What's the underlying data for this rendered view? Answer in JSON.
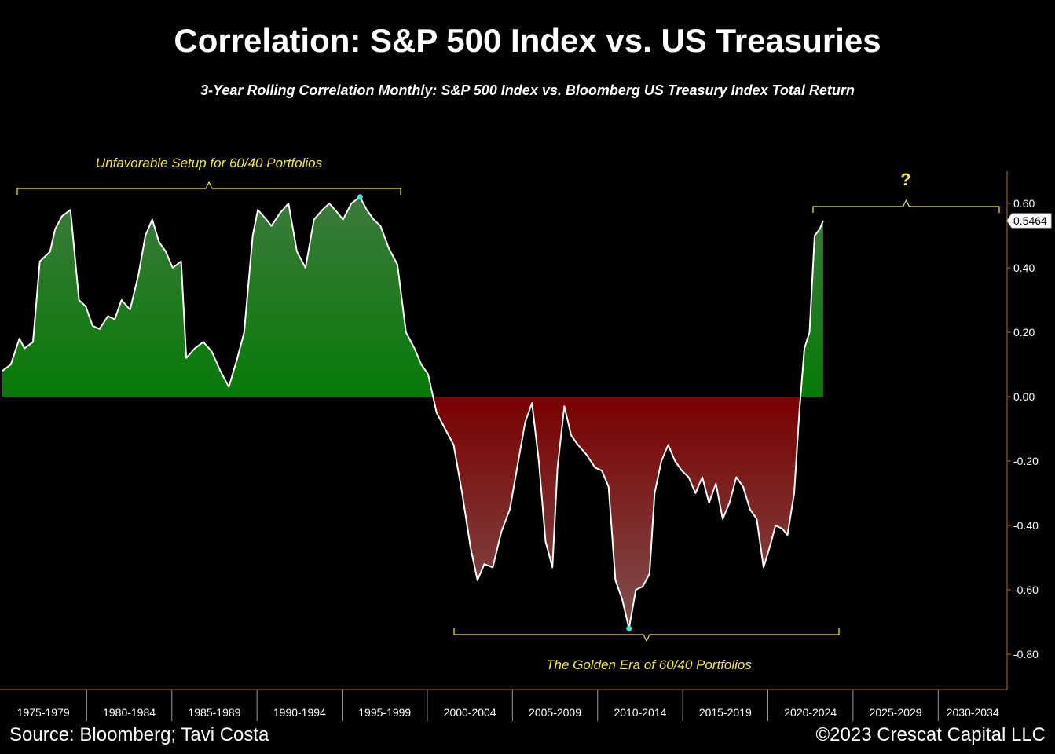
{
  "title": "Correlation: S&P 500 Index vs. US Treasuries",
  "subtitle": "3-Year Rolling Correlation Monthly: S&P 500 Index vs. Bloomberg US Treasury Index Total Return",
  "footer": {
    "source": "Source: Bloomberg; Tavi Costa",
    "copyright": "©2023 Crescat Capital LLC"
  },
  "annotations": {
    "unfavorable": "Unfavorable Setup for 60/40 Portfolios",
    "golden": "The Golden Era of 60/40 Portfolios",
    "question": "?"
  },
  "last_value_label": "0.5464",
  "colors": {
    "positive": "#0a7a0a",
    "negative": "#8b0000",
    "line": "#ffffff",
    "annotation": "#f2e84a",
    "axis": "#c06a1a",
    "marker": "#4fe0e0"
  },
  "chart_data": {
    "type": "area",
    "title": "Correlation: S&P 500 Index vs. US Treasuries",
    "subtitle": "3-Year Rolling Correlation Monthly: S&P 500 Index vs. Bloomberg US Treasury Index Total Return",
    "xlabel": "",
    "ylabel": "",
    "x_categories": [
      "1975-1979",
      "1980-1984",
      "1985-1989",
      "1990-1994",
      "1995-1999",
      "2000-2004",
      "2005-2009",
      "2010-2014",
      "2015-2019",
      "2020-2024",
      "2025-2029",
      "2030-2034"
    ],
    "xlim": [
      1975,
      2034
    ],
    "ylim": [
      -0.9,
      0.7
    ],
    "y_ticks": [
      -0.8,
      -0.6,
      -0.4,
      -0.2,
      0.0,
      0.2,
      0.4,
      0.6
    ],
    "y_axis_side": "right",
    "grid": false,
    "last_value": 0.5464,
    "series": [
      {
        "x": [
          1975.0,
          1975.5,
          1976.0,
          1976.3,
          1976.8,
          1977.2,
          1977.8,
          1978.1,
          1978.5,
          1979.0,
          1979.5,
          1979.9,
          1980.3,
          1980.7,
          1981.2,
          1981.6,
          1982.0,
          1982.5,
          1983.0,
          1983.4,
          1983.8,
          1984.2,
          1984.6,
          1985.0,
          1985.5,
          1985.8,
          1986.3,
          1986.8,
          1987.3,
          1987.8,
          1988.3,
          1988.8,
          1989.2,
          1989.7,
          1990.0,
          1990.5,
          1990.8,
          1991.3,
          1991.8,
          1992.3,
          1992.8,
          1993.3,
          1993.8,
          1994.2,
          1994.7,
          1995.0,
          1995.5,
          1996.0,
          1996.4,
          1996.8,
          1997.2,
          1997.7,
          1998.2,
          1998.7,
          1999.2,
          1999.6,
          2000.0,
          2000.5,
          2001.0,
          2001.5,
          2002.0,
          2002.5,
          2002.9,
          2003.3,
          2003.8,
          2004.3,
          2004.8,
          2005.3,
          2005.7,
          2006.1,
          2006.5,
          2006.9,
          2007.3,
          2007.6,
          2008.0,
          2008.4,
          2008.8,
          2009.3,
          2009.8,
          2010.2,
          2010.6,
          2011.0,
          2011.4,
          2011.8,
          2012.2,
          2012.6,
          2013.0,
          2013.3,
          2013.7,
          2014.1,
          2014.5,
          2014.9,
          2015.3,
          2015.7,
          2016.1,
          2016.5,
          2016.9,
          2017.3,
          2017.7,
          2018.1,
          2018.5,
          2018.9,
          2019.3,
          2019.7,
          2020.1,
          2020.4,
          2020.8,
          2021.1,
          2021.5,
          2021.8,
          2022.1,
          2022.4,
          2022.7,
          2023.0,
          2023.2
        ],
        "y": [
          0.08,
          0.1,
          0.18,
          0.15,
          0.17,
          0.42,
          0.45,
          0.52,
          0.56,
          0.58,
          0.3,
          0.28,
          0.22,
          0.21,
          0.25,
          0.24,
          0.3,
          0.27,
          0.38,
          0.5,
          0.55,
          0.48,
          0.45,
          0.4,
          0.42,
          0.12,
          0.15,
          0.17,
          0.14,
          0.08,
          0.03,
          0.12,
          0.2,
          0.5,
          0.58,
          0.55,
          0.53,
          0.57,
          0.6,
          0.45,
          0.4,
          0.55,
          0.58,
          0.6,
          0.57,
          0.55,
          0.6,
          0.62,
          0.58,
          0.55,
          0.53,
          0.46,
          0.41,
          0.2,
          0.15,
          0.1,
          0.07,
          -0.05,
          -0.1,
          -0.15,
          -0.3,
          -0.47,
          -0.57,
          -0.52,
          -0.53,
          -0.42,
          -0.35,
          -0.2,
          -0.08,
          -0.02,
          -0.2,
          -0.45,
          -0.53,
          -0.22,
          -0.03,
          -0.12,
          -0.15,
          -0.18,
          -0.22,
          -0.23,
          -0.28,
          -0.57,
          -0.63,
          -0.72,
          -0.6,
          -0.59,
          -0.55,
          -0.3,
          -0.2,
          -0.15,
          -0.2,
          -0.23,
          -0.25,
          -0.3,
          -0.25,
          -0.33,
          -0.27,
          -0.38,
          -0.33,
          -0.25,
          -0.28,
          -0.35,
          -0.38,
          -0.53,
          -0.46,
          -0.4,
          -0.41,
          -0.43,
          -0.3,
          -0.05,
          0.15,
          0.2,
          0.5,
          0.52,
          0.5464
        ]
      }
    ],
    "markers": [
      {
        "x": 1996.0,
        "y": 0.62
      },
      {
        "x": 2011.8,
        "y": -0.72
      }
    ]
  }
}
